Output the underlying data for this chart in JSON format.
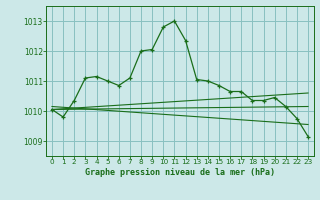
{
  "title": "Graphe pression niveau de la mer (hPa)",
  "background_color": "#cce8e8",
  "grid_color": "#88c0c0",
  "line_color": "#1a6e1a",
  "xlim": [
    -0.5,
    23.5
  ],
  "ylim": [
    1008.5,
    1013.5
  ],
  "yticks": [
    1009,
    1010,
    1011,
    1012,
    1013
  ],
  "xticks": [
    0,
    1,
    2,
    3,
    4,
    5,
    6,
    7,
    8,
    9,
    10,
    11,
    12,
    13,
    14,
    15,
    16,
    17,
    18,
    19,
    20,
    21,
    22,
    23
  ],
  "main_x": [
    0,
    1,
    2,
    3,
    4,
    5,
    6,
    7,
    8,
    9,
    10,
    11,
    12,
    13,
    14,
    15,
    16,
    17,
    18,
    19,
    20,
    21,
    22,
    23
  ],
  "main_y": [
    1010.05,
    1009.8,
    1010.35,
    1011.1,
    1011.15,
    1011.0,
    1010.85,
    1011.1,
    1012.0,
    1012.05,
    1012.8,
    1013.0,
    1012.35,
    1011.05,
    1011.0,
    1010.85,
    1010.65,
    1010.65,
    1010.35,
    1010.35,
    1010.45,
    1010.15,
    1009.75,
    1009.15
  ],
  "trend1_x": [
    0,
    23
  ],
  "trend1_y": [
    1010.05,
    1010.6
  ],
  "trend2_x": [
    0,
    23
  ],
  "trend2_y": [
    1010.05,
    1010.15
  ],
  "trend3_x": [
    0,
    23
  ],
  "trend3_y": [
    1010.15,
    1009.55
  ]
}
